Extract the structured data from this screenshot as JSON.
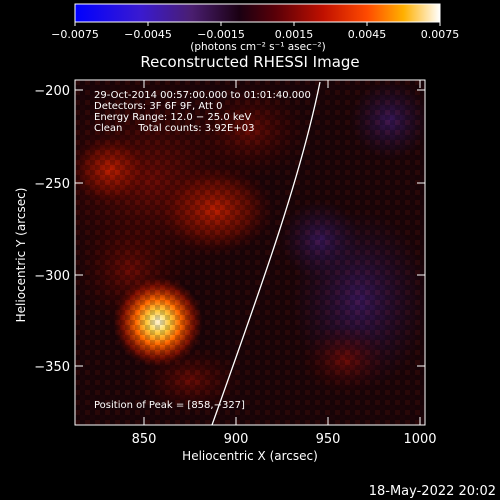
{
  "colorbar": {
    "tick_labels": [
      "−0.0075",
      "−0.0045",
      "−0.0015",
      "0.0015",
      "0.0045",
      "0.0075"
    ],
    "units_label": "(photons cm⁻² s⁻¹ asec⁻²)",
    "range": [
      -0.0075,
      0.0075
    ]
  },
  "image": {
    "title": "Reconstructed RHESSI Image",
    "info_lines": [
      "29-Oct-2014 00:57:00.000 to 01:01:40.000",
      "Detectors: 3F 6F 9F, Att 0",
      "Energy Range: 12.0 − 25.0 keV",
      "Clean     Total counts: 3.92E+03"
    ],
    "peak_label": "Position of Peak = [858,−327]",
    "peak_position": [
      858,
      -327
    ]
  },
  "axes": {
    "xlabel": "Heliocentric X (arcsec)",
    "ylabel": "Heliocentric Y (arcsec)",
    "xticks": [
      "850",
      "900",
      "950",
      "1000"
    ],
    "yticks": [
      "−200",
      "−250",
      "−300",
      "−350"
    ],
    "xlim": [
      812,
      1002
    ],
    "ylim": [
      -385,
      -190
    ]
  },
  "timestamp": "18-May-2022 20:02",
  "colors": {
    "background": "#000000",
    "limb_line": "#ffffff",
    "colormap": [
      "#0000ff",
      "#3020c0",
      "#1a0030",
      "#5a0010",
      "#c01000",
      "#ff4000",
      "#ffa000",
      "#ffffff"
    ]
  }
}
